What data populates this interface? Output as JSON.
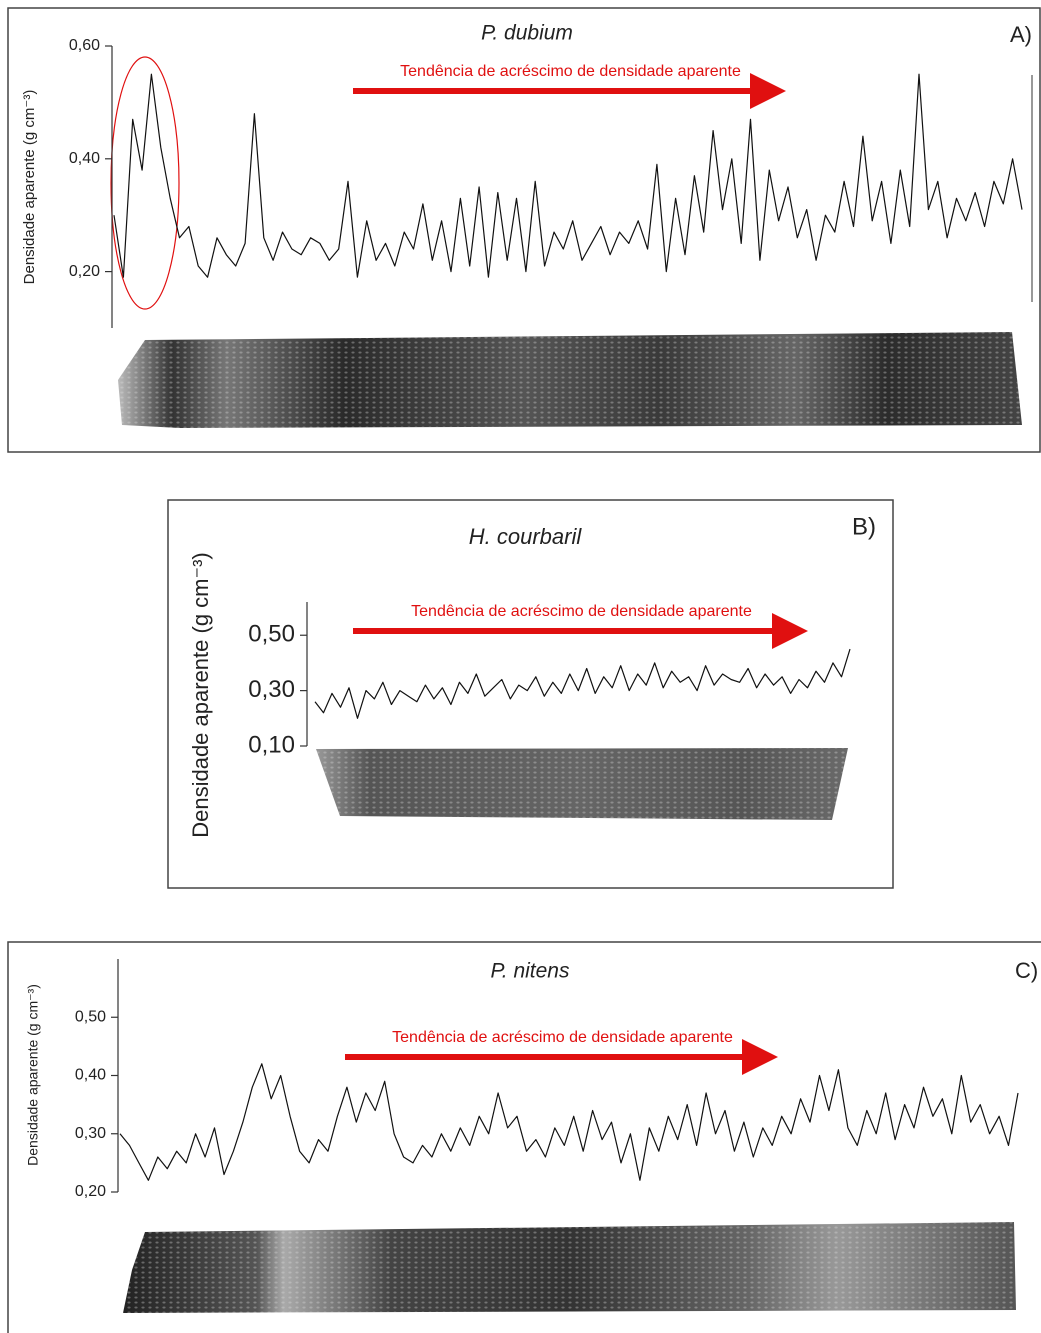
{
  "chart_data": [
    {
      "type": "line",
      "title": "P. dubium",
      "panel_label": "A)",
      "annotation": "Tendência de acréscimo de densidade aparente",
      "y_label": "Densidade aparente (g cm⁻³)",
      "color": "#111111",
      "ylim": [
        0.1,
        0.6
      ],
      "yticks": [
        {
          "value": 0.2,
          "label": "0,20"
        },
        {
          "value": 0.4,
          "label": "0,40"
        },
        {
          "value": 0.6,
          "label": "0,60"
        }
      ],
      "values": [
        0.3,
        0.19,
        0.47,
        0.38,
        0.55,
        0.42,
        0.33,
        0.26,
        0.28,
        0.21,
        0.19,
        0.26,
        0.23,
        0.21,
        0.25,
        0.48,
        0.26,
        0.22,
        0.27,
        0.24,
        0.23,
        0.26,
        0.25,
        0.22,
        0.24,
        0.36,
        0.19,
        0.29,
        0.22,
        0.25,
        0.21,
        0.27,
        0.24,
        0.32,
        0.22,
        0.29,
        0.2,
        0.33,
        0.21,
        0.35,
        0.19,
        0.34,
        0.22,
        0.33,
        0.2,
        0.36,
        0.21,
        0.27,
        0.24,
        0.29,
        0.22,
        0.25,
        0.28,
        0.23,
        0.27,
        0.25,
        0.29,
        0.24,
        0.39,
        0.2,
        0.33,
        0.23,
        0.37,
        0.27,
        0.45,
        0.31,
        0.4,
        0.25,
        0.47,
        0.22,
        0.38,
        0.29,
        0.35,
        0.26,
        0.31,
        0.22,
        0.3,
        0.27,
        0.36,
        0.28,
        0.44,
        0.29,
        0.36,
        0.25,
        0.38,
        0.28,
        0.55,
        0.31,
        0.36,
        0.26,
        0.33,
        0.29,
        0.34,
        0.28,
        0.36,
        0.32,
        0.4,
        0.31
      ]
    },
    {
      "type": "line",
      "title": "H. courbaril",
      "panel_label": "B)",
      "annotation": "Tendência de acréscimo de densidade aparente",
      "y_label": "Densidade aparente (g cm⁻³)",
      "color": "#111111",
      "ylim": [
        0.1,
        0.62
      ],
      "yticks": [
        {
          "value": 0.1,
          "label": "0,10"
        },
        {
          "value": 0.3,
          "label": "0,30"
        },
        {
          "value": 0.5,
          "label": "0,50"
        }
      ],
      "values": [
        0.26,
        0.22,
        0.29,
        0.24,
        0.31,
        0.2,
        0.3,
        0.27,
        0.33,
        0.25,
        0.3,
        0.28,
        0.26,
        0.32,
        0.27,
        0.31,
        0.25,
        0.33,
        0.29,
        0.36,
        0.28,
        0.31,
        0.34,
        0.27,
        0.32,
        0.3,
        0.35,
        0.28,
        0.33,
        0.29,
        0.36,
        0.3,
        0.38,
        0.29,
        0.35,
        0.31,
        0.39,
        0.3,
        0.36,
        0.32,
        0.4,
        0.31,
        0.37,
        0.33,
        0.35,
        0.3,
        0.39,
        0.32,
        0.36,
        0.34,
        0.33,
        0.38,
        0.31,
        0.36,
        0.32,
        0.35,
        0.29,
        0.34,
        0.31,
        0.37,
        0.33,
        0.4,
        0.35,
        0.45
      ]
    },
    {
      "type": "line",
      "title": "P. nitens",
      "panel_label": "C)",
      "annotation": "Tendência de acréscimo de densidade aparente",
      "y_label": "Densidade aparente (g cm⁻³)",
      "color": "#111111",
      "ylim": [
        0.2,
        0.6
      ],
      "yticks": [
        {
          "value": 0.2,
          "label": "0,20"
        },
        {
          "value": 0.3,
          "label": "0,30"
        },
        {
          "value": 0.4,
          "label": "0,40"
        },
        {
          "value": 0.5,
          "label": "0,50"
        }
      ],
      "values": [
        0.3,
        0.28,
        0.25,
        0.22,
        0.26,
        0.24,
        0.27,
        0.25,
        0.3,
        0.26,
        0.31,
        0.23,
        0.27,
        0.32,
        0.38,
        0.42,
        0.36,
        0.4,
        0.33,
        0.27,
        0.25,
        0.29,
        0.27,
        0.33,
        0.38,
        0.32,
        0.37,
        0.34,
        0.39,
        0.3,
        0.26,
        0.25,
        0.28,
        0.26,
        0.3,
        0.27,
        0.31,
        0.28,
        0.33,
        0.3,
        0.37,
        0.31,
        0.33,
        0.27,
        0.29,
        0.26,
        0.31,
        0.28,
        0.33,
        0.27,
        0.34,
        0.29,
        0.32,
        0.25,
        0.3,
        0.22,
        0.31,
        0.27,
        0.33,
        0.29,
        0.35,
        0.28,
        0.37,
        0.3,
        0.34,
        0.27,
        0.32,
        0.26,
        0.31,
        0.28,
        0.33,
        0.3,
        0.36,
        0.32,
        0.4,
        0.34,
        0.41,
        0.31,
        0.28,
        0.34,
        0.3,
        0.37,
        0.29,
        0.35,
        0.31,
        0.38,
        0.33,
        0.36,
        0.3,
        0.4,
        0.32,
        0.35,
        0.3,
        0.33,
        0.28,
        0.37
      ]
    }
  ]
}
